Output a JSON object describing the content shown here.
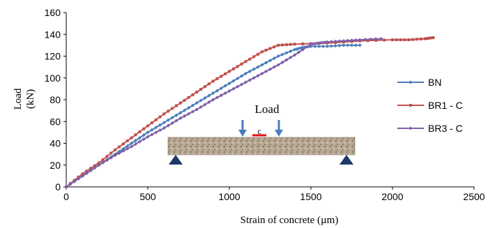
{
  "chart_data": {
    "type": "line",
    "xlabel": "Strain of concrete  (µm)",
    "ylabel_line1": "Load",
    "ylabel_line2": "(kN)",
    "xlim": [
      0,
      2500
    ],
    "ylim": [
      0,
      160
    ],
    "xticks": [
      0,
      500,
      1000,
      1500,
      2000,
      2500
    ],
    "yticks": [
      0,
      20,
      40,
      60,
      80,
      100,
      120,
      140,
      160
    ],
    "grid": false,
    "legend_position": "right",
    "series": [
      {
        "name": "BN",
        "color": "#4a7ebb",
        "marker": "diamond",
        "points": [
          [
            0,
            0
          ],
          [
            100,
            10
          ],
          [
            200,
            20
          ],
          [
            300,
            30
          ],
          [
            400,
            40
          ],
          [
            500,
            50
          ],
          [
            600,
            59
          ],
          [
            700,
            68
          ],
          [
            800,
            77
          ],
          [
            900,
            86
          ],
          [
            1000,
            95
          ],
          [
            1100,
            104
          ],
          [
            1200,
            112
          ],
          [
            1300,
            120
          ],
          [
            1400,
            126
          ],
          [
            1450,
            128
          ],
          [
            1500,
            129
          ],
          [
            1600,
            129
          ],
          [
            1700,
            130
          ],
          [
            1800,
            130
          ]
        ]
      },
      {
        "name": "BR1 - C",
        "color": "#c0504d",
        "marker": "square",
        "points": [
          [
            0,
            0
          ],
          [
            100,
            12
          ],
          [
            200,
            22
          ],
          [
            300,
            34
          ],
          [
            400,
            45
          ],
          [
            500,
            56
          ],
          [
            600,
            67
          ],
          [
            700,
            77
          ],
          [
            800,
            87
          ],
          [
            900,
            97
          ],
          [
            1000,
            106
          ],
          [
            1100,
            115
          ],
          [
            1200,
            124
          ],
          [
            1300,
            130
          ],
          [
            1400,
            131
          ],
          [
            1600,
            132
          ],
          [
            1800,
            134
          ],
          [
            2000,
            135
          ],
          [
            2100,
            135
          ],
          [
            2200,
            136
          ],
          [
            2250,
            137
          ]
        ]
      },
      {
        "name": "BR3 - C",
        "color": "#7f5fa9",
        "marker": "diamond",
        "points": [
          [
            0,
            0
          ],
          [
            100,
            10
          ],
          [
            200,
            20
          ],
          [
            300,
            29
          ],
          [
            400,
            37
          ],
          [
            500,
            46
          ],
          [
            600,
            54
          ],
          [
            700,
            63
          ],
          [
            800,
            71
          ],
          [
            900,
            80
          ],
          [
            1000,
            88
          ],
          [
            1100,
            96
          ],
          [
            1200,
            104
          ],
          [
            1300,
            112
          ],
          [
            1400,
            121
          ],
          [
            1500,
            131
          ],
          [
            1550,
            132
          ],
          [
            1600,
            133
          ],
          [
            1700,
            134
          ],
          [
            1800,
            135
          ],
          [
            1930,
            136
          ]
        ]
      }
    ],
    "annotations": {
      "load_label": "Load",
      "midspan_label": "c"
    }
  }
}
